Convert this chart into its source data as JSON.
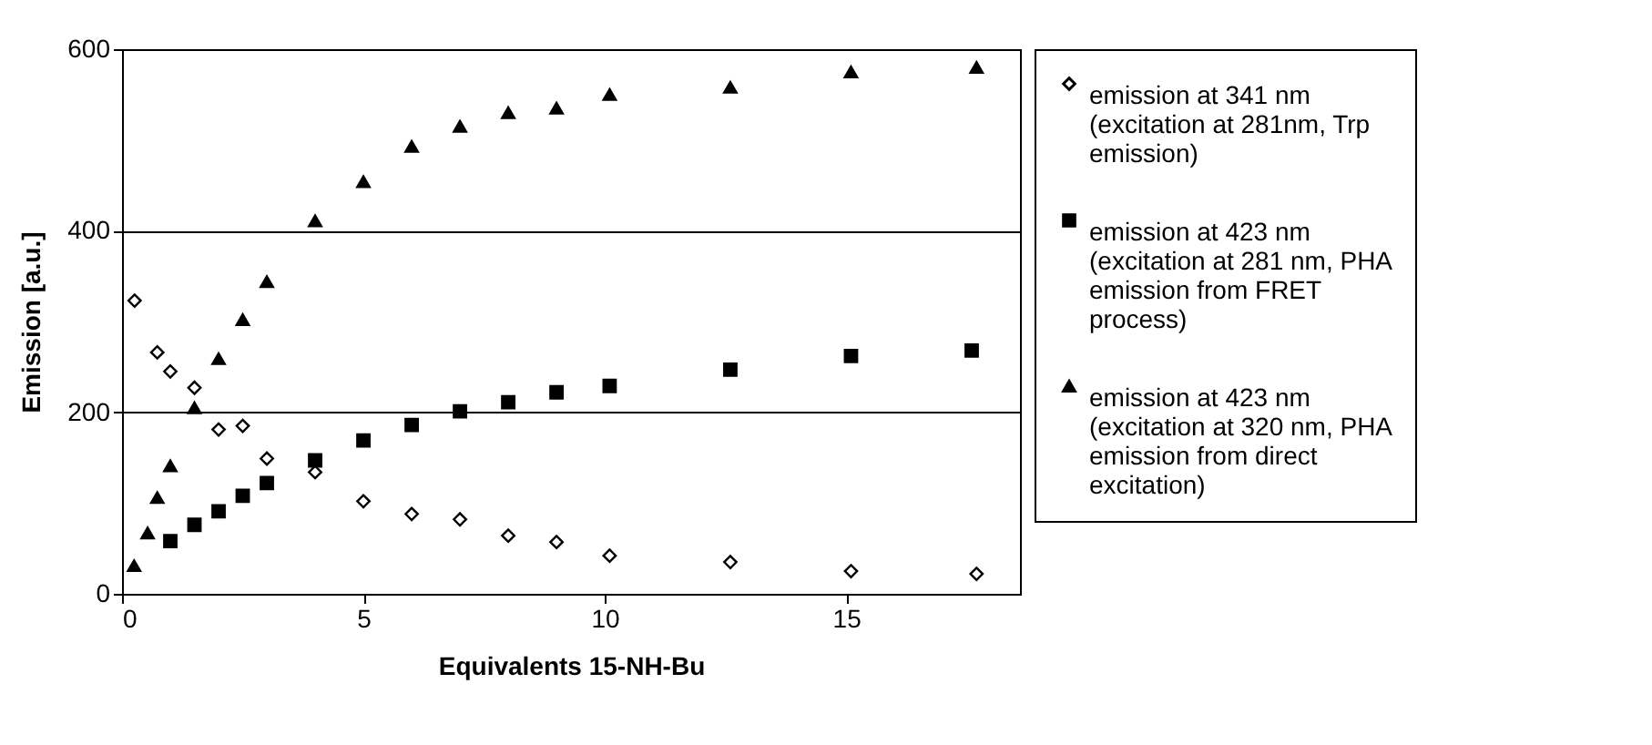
{
  "chart_data": {
    "type": "scatter",
    "xlabel": "Equivalents 15-NH-Bu",
    "ylabel": "Emission [a.u.]",
    "xlim": [
      0,
      18.6
    ],
    "xticks": [
      0,
      5,
      10,
      15
    ],
    "ylim": [
      0,
      600
    ],
    "yticks": [
      0,
      200,
      400,
      600
    ],
    "grid": "y",
    "legend": "right",
    "series": [
      {
        "name": "emission at 341 nm (excitation at 281nm, Trp emission)",
        "color": "#000000",
        "marker": "diamond",
        "x": [
          0.26,
          0.73,
          1.0,
          1.5,
          2.0,
          2.5,
          3.0,
          4.0,
          5.0,
          6.0,
          7.0,
          8.0,
          9.0,
          10.1,
          12.6,
          15.1,
          17.7
        ],
        "values": [
          323,
          266,
          245,
          227,
          181,
          185,
          149,
          134,
          102,
          88,
          82,
          64,
          57,
          42,
          35,
          25,
          22
        ]
      },
      {
        "name": "emission at 423 nm (excitation at 281 nm, PHA emission from FRET process)",
        "color": "#000000",
        "marker": "square",
        "x": [
          1.0,
          1.5,
          2.0,
          2.5,
          3.0,
          4.0,
          5.0,
          6.0,
          7.0,
          8.0,
          9.0,
          10.1,
          12.6,
          15.1,
          17.6
        ],
        "values": [
          58,
          76,
          91,
          108,
          122,
          147,
          169,
          186,
          201,
          211,
          222,
          229,
          247,
          262,
          268
        ]
      },
      {
        "name": "emission at 423 nm (excitation at 320 nm, PHA emission from direct excitation)",
        "color": "#000000",
        "marker": "triangle",
        "x": [
          0.25,
          0.53,
          0.73,
          1.0,
          1.5,
          2.0,
          2.5,
          3.0,
          4.0,
          5.0,
          6.0,
          7.0,
          8.0,
          9.0,
          10.1,
          12.6,
          15.1,
          17.7
        ],
        "values": [
          31,
          67,
          106,
          141,
          205,
          259,
          302,
          344,
          411,
          454,
          493,
          515,
          530,
          535,
          550,
          558,
          575,
          580
        ]
      }
    ]
  }
}
